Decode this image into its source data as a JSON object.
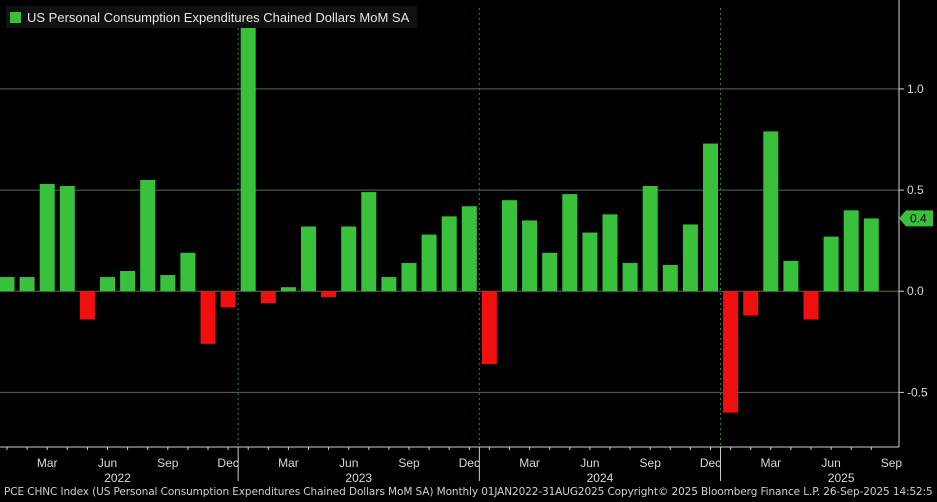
{
  "chart_data": {
    "type": "bar",
    "title": "US Personal Consumption Expenditures Chained Dollars MoM SA",
    "categories": [
      "Jan 2022",
      "Feb 2022",
      "Mar 2022",
      "Apr 2022",
      "May 2022",
      "Jun 2022",
      "Jul 2022",
      "Aug 2022",
      "Sep 2022",
      "Oct 2022",
      "Nov 2022",
      "Dec 2022",
      "Jan 2023",
      "Feb 2023",
      "Mar 2023",
      "Apr 2023",
      "May 2023",
      "Jun 2023",
      "Jul 2023",
      "Aug 2023",
      "Sep 2023",
      "Oct 2023",
      "Nov 2023",
      "Dec 2023",
      "Jan 2024",
      "Feb 2024",
      "Mar 2024",
      "Apr 2024",
      "May 2024",
      "Jun 2024",
      "Jul 2024",
      "Aug 2024",
      "Sep 2024",
      "Oct 2024",
      "Nov 2024",
      "Dec 2024",
      "Jan 2025",
      "Feb 2025",
      "Mar 2025",
      "Apr 2025",
      "May 2025",
      "Jun 2025",
      "Jul 2025",
      "Aug 2025"
    ],
    "values": [
      0.07,
      0.07,
      0.53,
      0.52,
      -0.14,
      0.07,
      0.1,
      0.55,
      0.08,
      0.19,
      -0.26,
      -0.08,
      1.31,
      -0.06,
      0.02,
      0.32,
      -0.03,
      0.32,
      0.49,
      0.07,
      0.14,
      0.28,
      0.37,
      0.42,
      -0.36,
      0.45,
      0.35,
      0.19,
      0.48,
      0.29,
      0.38,
      0.14,
      0.52,
      0.13,
      0.33,
      0.73,
      -0.6,
      -0.12,
      0.79,
      0.15,
      -0.14,
      0.27,
      0.4,
      0.36
    ],
    "ylim": [
      -0.77,
      1.4
    ],
    "yticks": [
      -0.5,
      0.0,
      0.5,
      1.0
    ],
    "ytick_labels": [
      "-0.5",
      "0.0",
      "0.5",
      "1.0"
    ],
    "month_ticks": [
      {
        "label": "Mar",
        "index": 2
      },
      {
        "label": "Jun",
        "index": 5
      },
      {
        "label": "Sep",
        "index": 8
      },
      {
        "label": "Dec",
        "index": 11
      },
      {
        "label": "Mar",
        "index": 14
      },
      {
        "label": "Jun",
        "index": 17
      },
      {
        "label": "Sep",
        "index": 20
      },
      {
        "label": "Dec",
        "index": 23
      },
      {
        "label": "Mar",
        "index": 26
      },
      {
        "label": "Jun",
        "index": 29
      },
      {
        "label": "Sep",
        "index": 32
      },
      {
        "label": "Dec",
        "index": 35
      },
      {
        "label": "Mar",
        "index": 38
      },
      {
        "label": "Jun",
        "index": 41
      },
      {
        "label": "Sep",
        "index": 44
      }
    ],
    "year_labels": [
      {
        "label": "2022",
        "index": 5.5
      },
      {
        "label": "2023",
        "index": 17.5
      },
      {
        "label": "2024",
        "index": 29.5
      },
      {
        "label": "2025",
        "index": 41.5
      }
    ],
    "last_value_label": "0.4",
    "grid": true,
    "legend_position": "top-left",
    "colors": {
      "positive": "#39c13c",
      "negative": "#f01010",
      "grid": "#3f7a3f",
      "axis": "#cfcfcf",
      "tag": "#39c13c"
    }
  },
  "footer": {
    "text": "PCE CHNC Index (US Personal Consumption Expenditures Chained Dollars MoM SA)  Monthly 01JAN2022-31AUG2025 Copyright© 2025 Bloomberg Finance L.P.  26-Sep-2025 14:52:53"
  }
}
